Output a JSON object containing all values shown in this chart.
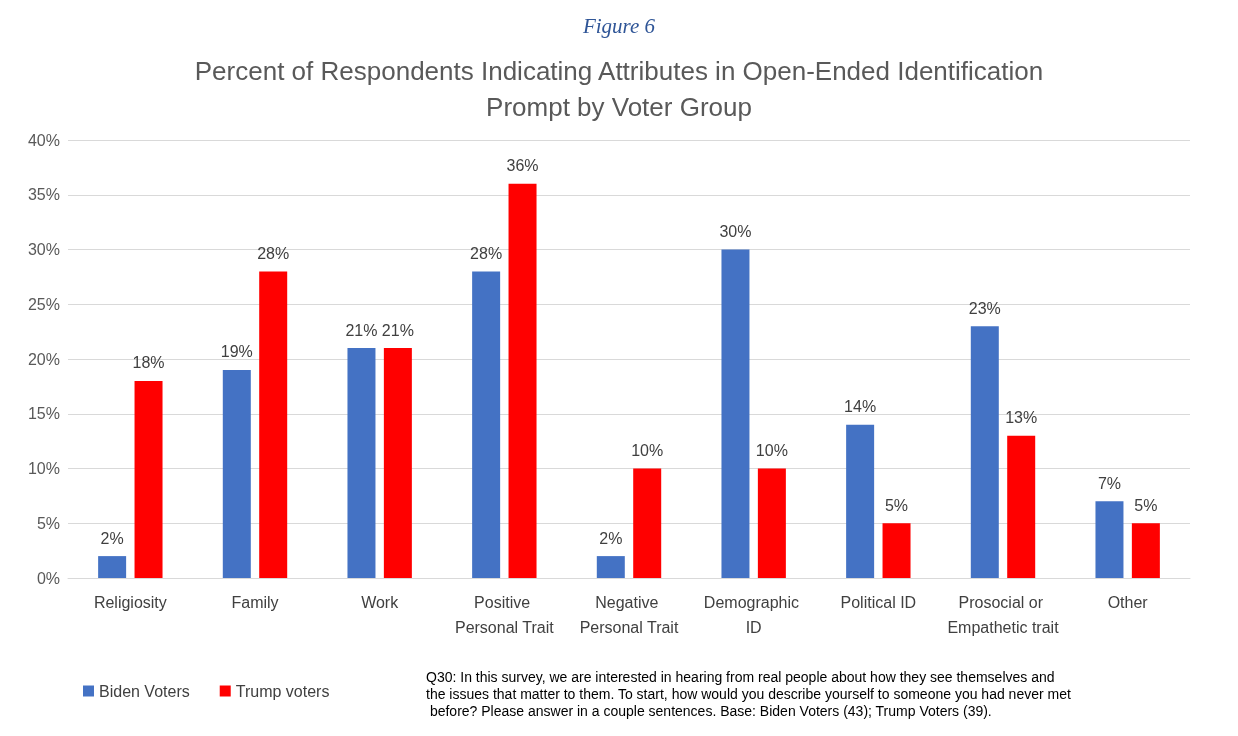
{
  "chart_data": {
    "type": "bar",
    "subtitle": "Figure 6",
    "title": "Percent of Respondents Indicating Attributes in Open-Ended Identification\nPrompt by Voter Group",
    "categories": [
      "Religiosity",
      "Family",
      "Work",
      "Positive Personal Trait",
      "Negative Personal Trait",
      "Demographic ID",
      "Political ID",
      "Prosocial or Empathetic trait",
      "Other"
    ],
    "series": [
      {
        "name": "Biden Voters",
        "color": "#4472c4",
        "values": [
          2,
          19,
          21,
          28,
          2,
          30,
          14,
          23,
          7
        ],
        "value_labels": [
          "2%",
          "19%",
          "21%",
          "28%",
          "2%",
          "30%",
          "14%",
          "23%",
          "7%"
        ]
      },
      {
        "name": "Trump voters",
        "color": "#ff0000",
        "values": [
          18,
          28,
          21,
          36,
          10,
          10,
          5,
          13,
          5
        ],
        "value_labels": [
          "18%",
          "28%",
          "21%",
          "36%",
          "10%",
          "10%",
          "5%",
          "13%",
          "5%"
        ]
      }
    ],
    "ylim": [
      0,
      40
    ],
    "yticks": [
      {
        "value": 0,
        "label": "0%"
      },
      {
        "value": 5,
        "label": "5%"
      },
      {
        "value": 10,
        "label": "10%"
      },
      {
        "value": 15,
        "label": "15%"
      },
      {
        "value": 20,
        "label": "20%"
      },
      {
        "value": 25,
        "label": "25%"
      },
      {
        "value": 30,
        "label": "30%"
      },
      {
        "value": 35,
        "label": "35%"
      },
      {
        "value": 40,
        "label": "40%"
      }
    ],
    "grid": "y",
    "legend": "bottom left",
    "annotations": [
      "Q30: In this survey, we are interested in hearing from real people about how they see themselves and the issues that matter to them. To start, how would you describe yourself to someone you had never met before? Please answer in a couple sentences. Base: Biden Voters (43); Trump Voters (39)."
    ]
  }
}
